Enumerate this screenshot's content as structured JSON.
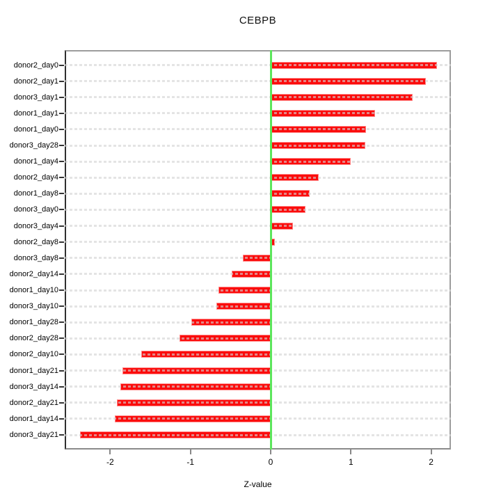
{
  "chart_data": {
    "type": "bar",
    "orientation": "horizontal",
    "title": "CEBPB",
    "xlabel": "Z-value",
    "ylabel": "",
    "categories": [
      "donor2_day0",
      "donor2_day1",
      "donor3_day1",
      "donor1_day1",
      "donor1_day0",
      "donor3_day28",
      "donor1_day4",
      "donor2_day4",
      "donor1_day8",
      "donor3_day0",
      "donor3_day4",
      "donor2_day8",
      "donor3_day8",
      "donor2_day14",
      "donor1_day10",
      "donor3_day10",
      "donor1_day28",
      "donor2_day28",
      "donor2_day10",
      "donor1_day21",
      "donor3_day14",
      "donor2_day21",
      "donor1_day14",
      "donor3_day21"
    ],
    "values": [
      2.07,
      1.93,
      1.77,
      1.3,
      1.19,
      1.18,
      1.0,
      0.6,
      0.49,
      0.43,
      0.28,
      0.05,
      -0.35,
      -0.49,
      -0.65,
      -0.68,
      -0.99,
      -1.14,
      -1.61,
      -1.85,
      -1.87,
      -1.92,
      -1.94,
      -2.38
    ],
    "xlim": [
      -2.57,
      2.25
    ],
    "x_ticks": [
      -2,
      -1,
      0,
      1,
      2
    ],
    "x_tick_labels": [
      "-2",
      "-1",
      "0",
      "1",
      "2"
    ],
    "grid": "horizontal dashed line per category",
    "legend": "none",
    "bar_color": "#FB0C0C",
    "bar_border_color": "#FFA0A0",
    "zero_line_color": "#5CE65C",
    "grid_color": "#D3D3D3"
  }
}
